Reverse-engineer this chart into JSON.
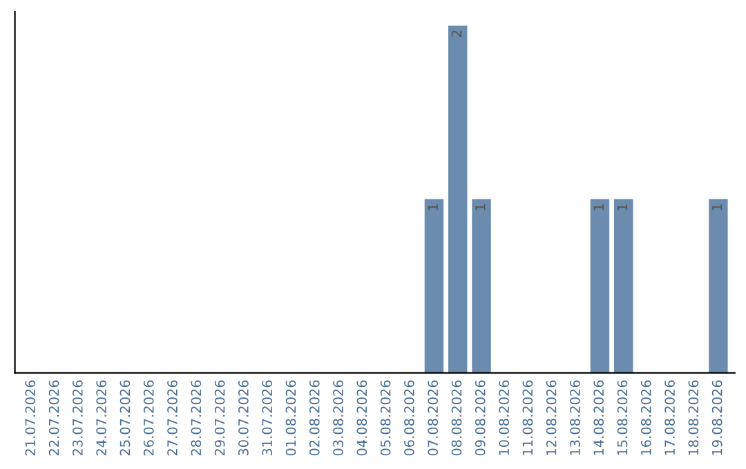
{
  "chart_data": {
    "type": "bar",
    "categories": [
      "21.07.2026",
      "22.07.2026",
      "23.07.2026",
      "24.07.2026",
      "25.07.2026",
      "26.07.2026",
      "27.07.2026",
      "28.07.2026",
      "29.07.2026",
      "30.07.2026",
      "31.07.2026",
      "01.08.2026",
      "02.08.2026",
      "03.08.2026",
      "04.08.2026",
      "05.08.2026",
      "06.08.2026",
      "07.08.2026",
      "08.08.2026",
      "09.08.2026",
      "10.08.2026",
      "11.08.2026",
      "12.08.2026",
      "13.08.2026",
      "14.08.2026",
      "15.08.2026",
      "16.08.2026",
      "17.08.2026",
      "18.08.2026",
      "19.08.2026"
    ],
    "values": [
      null,
      null,
      null,
      null,
      null,
      null,
      null,
      null,
      null,
      null,
      null,
      null,
      null,
      null,
      null,
      null,
      null,
      1,
      2,
      1,
      null,
      null,
      null,
      null,
      1,
      1,
      null,
      null,
      null,
      1
    ],
    "data_labels": true,
    "color": "#6b8cae",
    "tick_labels": "x",
    "grid": false,
    "legend": false
  }
}
